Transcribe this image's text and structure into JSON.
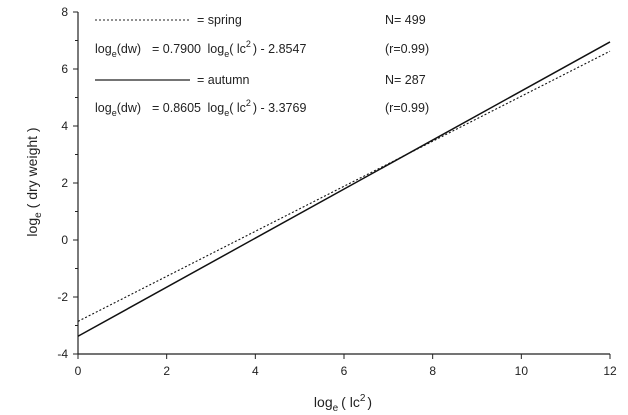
{
  "chart_data": {
    "type": "line",
    "xlabel": {
      "base": "log",
      "sub": "e",
      "open": "( lc",
      "sup": "2",
      "close": ")"
    },
    "ylabel": {
      "base": "log",
      "sub": "e",
      "rest": "( dry weight )"
    },
    "xlim": [
      0,
      12
    ],
    "ylim": [
      -4,
      8
    ],
    "xticks": [
      "0",
      "2",
      "4",
      "6",
      "8",
      "10",
      "12"
    ],
    "yticks": [
      "-4",
      "-2",
      "0",
      "2",
      "4",
      "6",
      "8"
    ],
    "grid": false,
    "legend_position": "top-left",
    "series": [
      {
        "name": "spring",
        "style": "dotted",
        "x": [
          0,
          12
        ],
        "y": [
          -2.8547,
          6.6253
        ],
        "label": "= spring",
        "n_label": "N= 499",
        "equation": {
          "lhs_base": "log",
          "lhs_sub": "e",
          "lhs_rest": "(dw)",
          "eq": "= 0.7900",
          "rhs_base": "log",
          "rhs_sub": "e",
          "rhs_open": "( lc",
          "rhs_sup": "2",
          "rhs_close": ") - 2.8547"
        },
        "r_label": "(r=0.99)"
      },
      {
        "name": "autumn",
        "style": "solid",
        "x": [
          0,
          12
        ],
        "y": [
          -3.3769,
          6.9491
        ],
        "label": "= autumn",
        "n_label": "N= 287",
        "equation": {
          "lhs_base": "log",
          "lhs_sub": "e",
          "lhs_rest": "(dw)",
          "eq": "= 0.8605",
          "rhs_base": "log",
          "rhs_sub": "e",
          "rhs_open": "( lc",
          "rhs_sup": "2",
          "rhs_close": ") - 3.3769"
        },
        "r_label": "(r=0.99)"
      }
    ]
  }
}
